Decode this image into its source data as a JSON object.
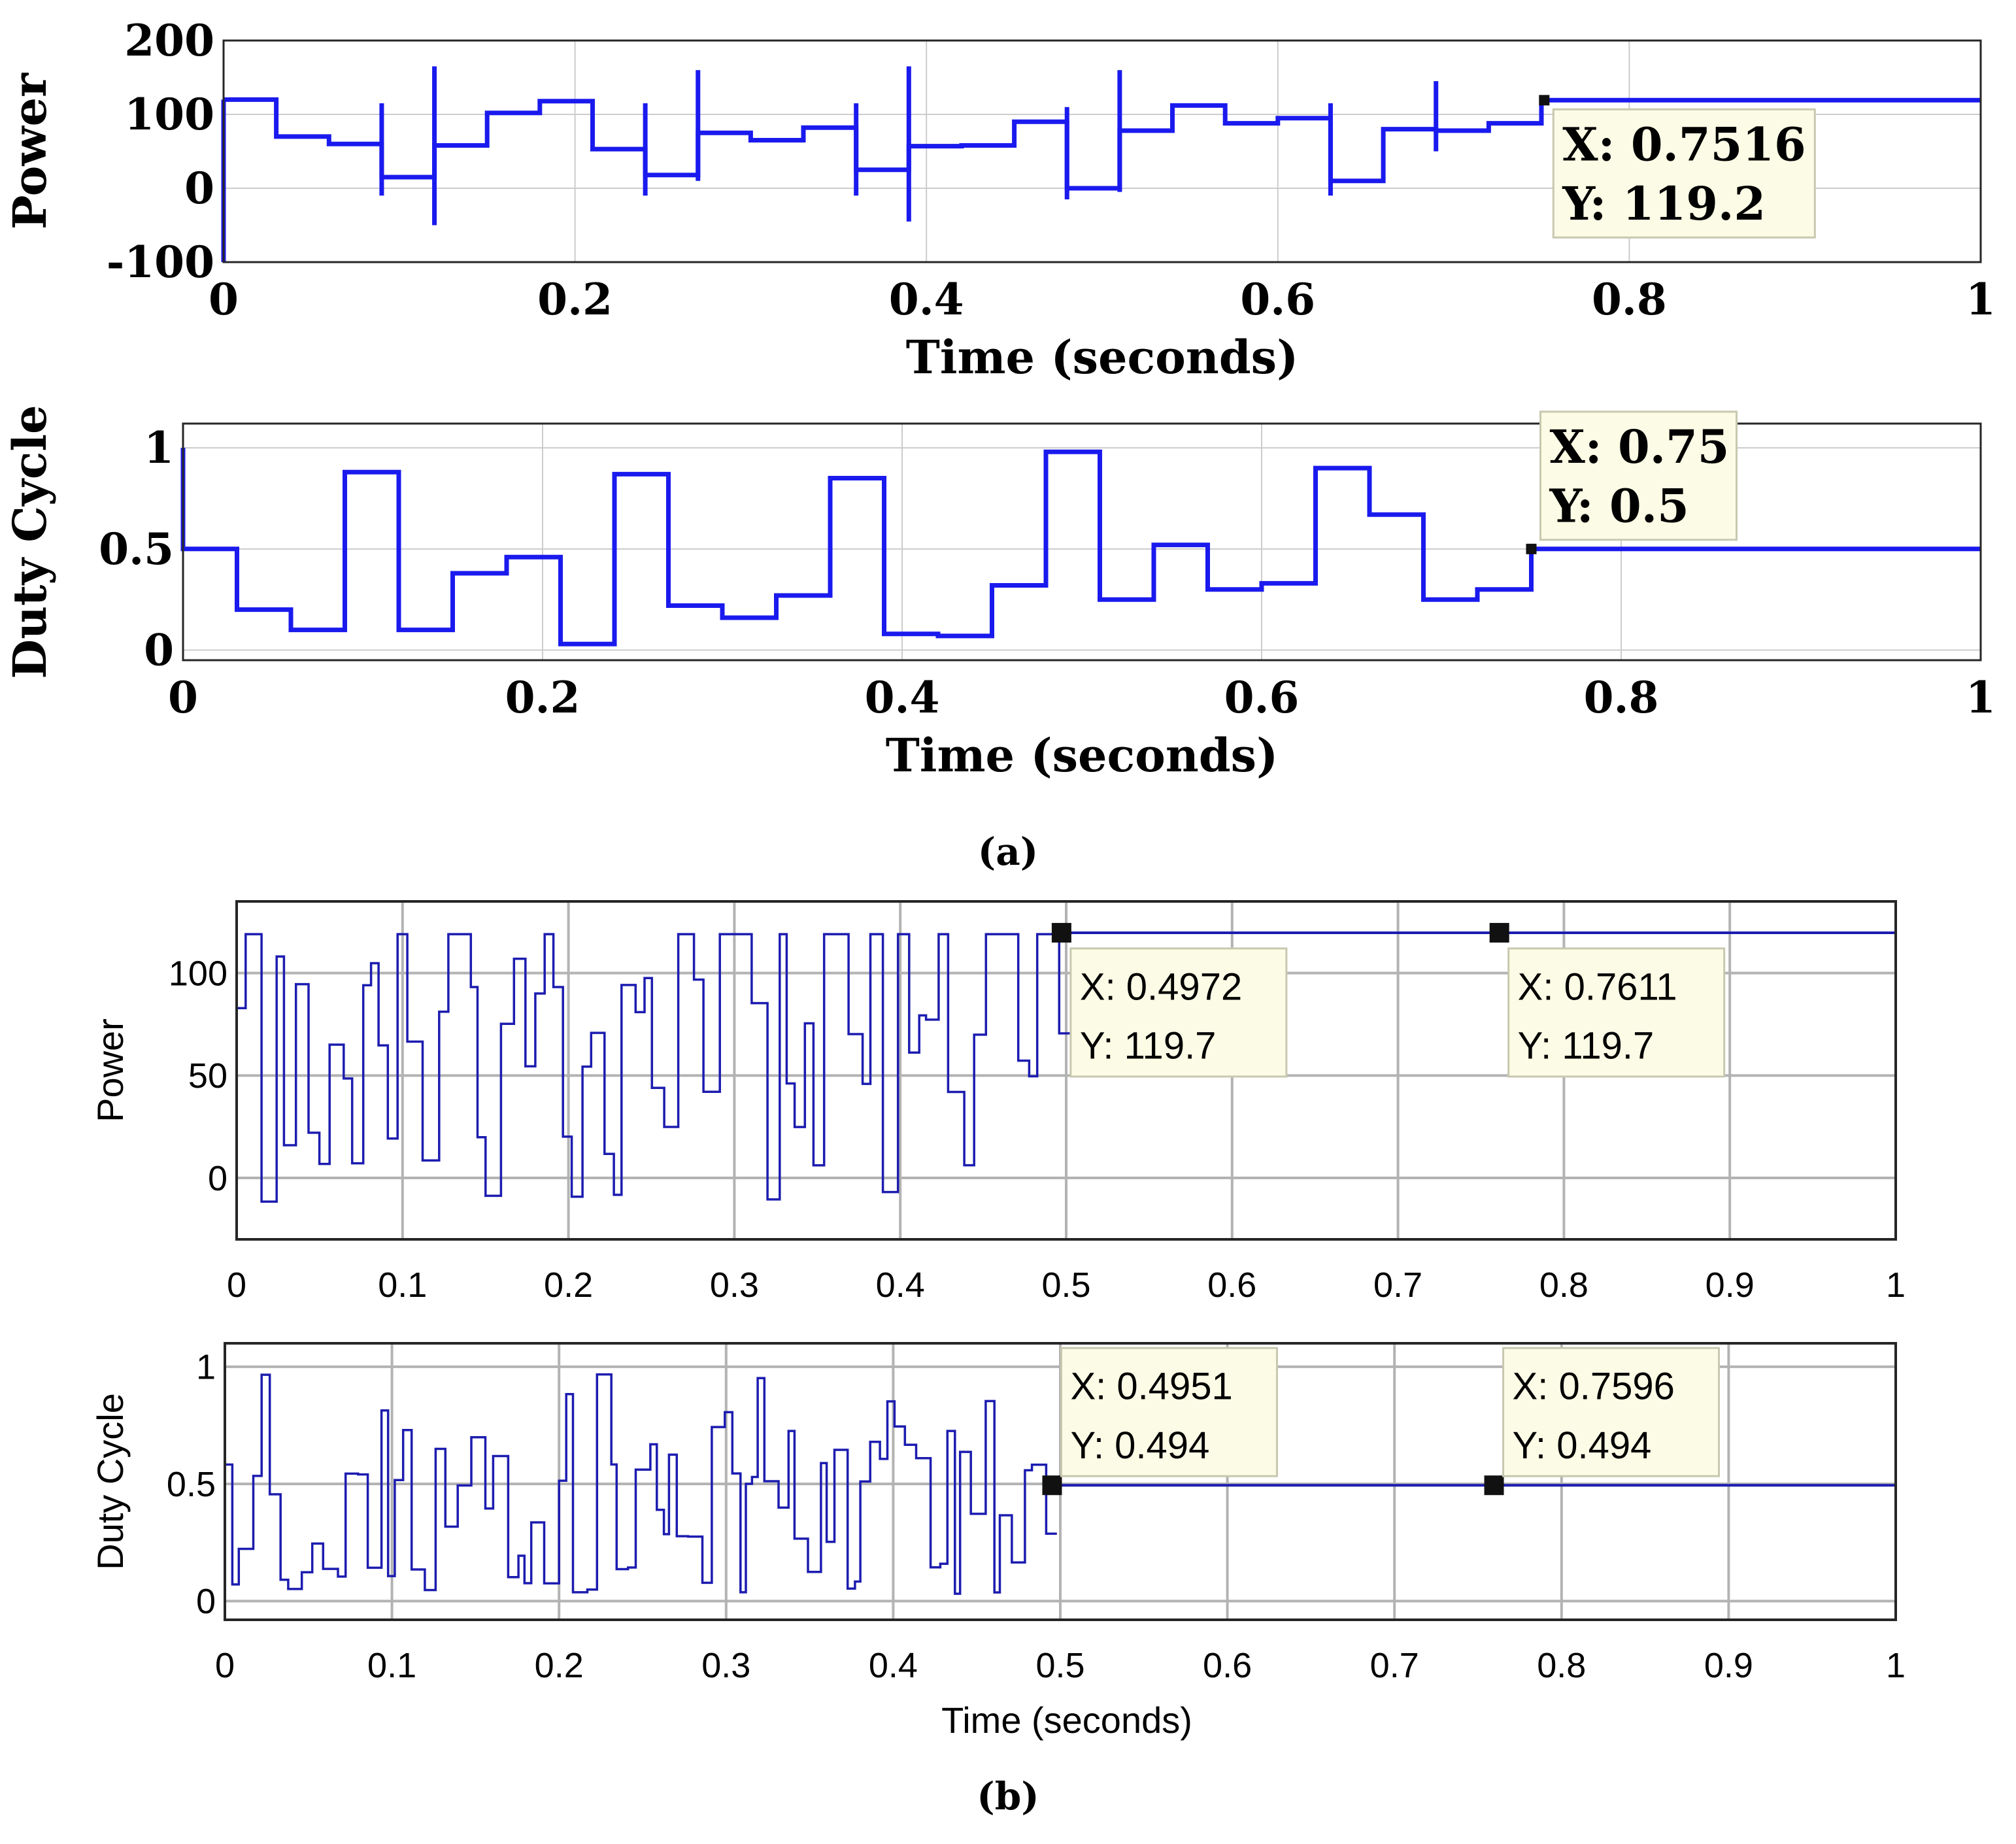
{
  "colors": {
    "trace": "#1a1aee",
    "trace_b": "#1c1cb0",
    "grid": "#cccccc",
    "tip_bg": "#fcfce6",
    "tip_border": "#c8c8b0"
  },
  "panel_a": {
    "label": "(a)"
  },
  "panel_b": {
    "label": "(b)"
  },
  "chart_data": [
    {
      "id": "a_power",
      "type": "line",
      "style": "a",
      "ylabel": "Power",
      "xlabel": "Time (seconds)",
      "xlim": [
        0,
        1
      ],
      "ylim": [
        -100,
        200
      ],
      "xticks": [
        0,
        0.2,
        0.4,
        0.6,
        0.8,
        1
      ],
      "xtick_labels": [
        "0",
        "0.2",
        "0.4",
        "0.6",
        "0.8",
        "1"
      ],
      "yticks": [
        -100,
        0,
        100,
        200
      ],
      "ytick_labels": [
        "-100",
        "0",
        "100",
        "200"
      ],
      "x": [
        0,
        0.03,
        0.03,
        0.06,
        0.06,
        0.09,
        0.09,
        0.12,
        0.12,
        0.15,
        0.15,
        0.18,
        0.18,
        0.21,
        0.21,
        0.24,
        0.24,
        0.27,
        0.27,
        0.3,
        0.3,
        0.33,
        0.33,
        0.36,
        0.36,
        0.39,
        0.39,
        0.42,
        0.42,
        0.45,
        0.45,
        0.48,
        0.48,
        0.51,
        0.51,
        0.54,
        0.54,
        0.57,
        0.57,
        0.6,
        0.6,
        0.63,
        0.63,
        0.66,
        0.66,
        0.69,
        0.69,
        0.72,
        0.72,
        0.75,
        0.75,
        1
      ],
      "y": [
        120,
        120,
        70,
        70,
        60,
        60,
        15,
        15,
        58,
        58,
        102,
        102,
        118,
        118,
        53,
        53,
        18,
        18,
        75,
        75,
        65,
        65,
        82,
        82,
        25,
        25,
        57,
        57,
        58,
        58,
        90,
        90,
        0,
        0,
        78,
        78,
        112,
        112,
        88,
        88,
        95,
        95,
        10,
        10,
        80,
        80,
        78,
        78,
        88,
        88,
        119.2,
        119.2
      ],
      "spikes": [
        {
          "x": 0,
          "lo": -100,
          "hi": 120
        },
        {
          "x": 0.09,
          "lo": -10,
          "hi": 115
        },
        {
          "x": 0.12,
          "lo": -50,
          "hi": 165
        },
        {
          "x": 0.24,
          "lo": -10,
          "hi": 115
        },
        {
          "x": 0.27,
          "lo": 10,
          "hi": 160
        },
        {
          "x": 0.36,
          "lo": -10,
          "hi": 115
        },
        {
          "x": 0.39,
          "lo": -45,
          "hi": 165
        },
        {
          "x": 0.48,
          "lo": -15,
          "hi": 110
        },
        {
          "x": 0.51,
          "lo": -5,
          "hi": 160
        },
        {
          "x": 0.63,
          "lo": -10,
          "hi": 115
        },
        {
          "x": 0.69,
          "lo": 50,
          "hi": 145
        }
      ],
      "markers": [
        {
          "x": 0.7516,
          "y": 119.2,
          "label_x": "X: 0.7516",
          "label_y": "Y: 119.2"
        }
      ]
    },
    {
      "id": "a_duty",
      "type": "line",
      "style": "a",
      "ylabel": "Duty Cycle",
      "xlabel": "Time (seconds)",
      "xlim": [
        0,
        1
      ],
      "ylim": [
        -0.05,
        1.12
      ],
      "xticks": [
        0,
        0.2,
        0.4,
        0.6,
        0.8,
        1
      ],
      "xtick_labels": [
        "0",
        "0.2",
        "0.4",
        "0.6",
        "0.8",
        "1"
      ],
      "yticks": [
        0,
        0.5,
        1
      ],
      "ytick_labels": [
        "0",
        "0.5",
        "1"
      ],
      "x": [
        0,
        0,
        0.03,
        0.03,
        0.06,
        0.06,
        0.09,
        0.09,
        0.12,
        0.12,
        0.15,
        0.15,
        0.18,
        0.18,
        0.21,
        0.21,
        0.24,
        0.24,
        0.27,
        0.27,
        0.3,
        0.3,
        0.33,
        0.33,
        0.36,
        0.36,
        0.39,
        0.39,
        0.42,
        0.42,
        0.45,
        0.45,
        0.48,
        0.48,
        0.51,
        0.51,
        0.54,
        0.54,
        0.57,
        0.57,
        0.6,
        0.6,
        0.63,
        0.63,
        0.66,
        0.66,
        0.69,
        0.69,
        0.72,
        0.72,
        0.75,
        0.75,
        1
      ],
      "y": [
        1,
        0.5,
        0.5,
        0.2,
        0.2,
        0.1,
        0.1,
        0.88,
        0.88,
        0.1,
        0.1,
        0.38,
        0.38,
        0.46,
        0.46,
        0.03,
        0.03,
        0.87,
        0.87,
        0.22,
        0.22,
        0.16,
        0.16,
        0.27,
        0.27,
        0.85,
        0.85,
        0.08,
        0.08,
        0.07,
        0.07,
        0.32,
        0.32,
        0.98,
        0.98,
        0.25,
        0.25,
        0.52,
        0.52,
        0.3,
        0.3,
        0.33,
        0.33,
        0.9,
        0.9,
        0.67,
        0.67,
        0.25,
        0.25,
        0.3,
        0.3,
        0.5,
        0.5
      ],
      "markers": [
        {
          "x": 0.75,
          "y": 0.5,
          "label_x": "X: 0.75",
          "label_y": "Y: 0.5"
        }
      ]
    },
    {
      "id": "b_power",
      "type": "line",
      "style": "b",
      "ylabel": "Power",
      "xlabel": "",
      "xlim": [
        0,
        1
      ],
      "ylim": [
        -30,
        135
      ],
      "xticks": [
        0,
        0.1,
        0.2,
        0.3,
        0.4,
        0.5,
        0.6,
        0.7,
        0.8,
        0.9,
        1
      ],
      "xtick_labels": [
        "0",
        "0.1",
        "0.2",
        "0.3",
        "0.4",
        "0.5",
        "0.6",
        "0.7",
        "0.8",
        "0.9",
        "1"
      ],
      "yticks": [
        0,
        50,
        100
      ],
      "ytick_labels": [
        "0",
        "50",
        "100"
      ],
      "end_x": 0.4972,
      "after_y": 119.7,
      "markers": [
        {
          "x": 0.4972,
          "y": 119.7,
          "label_x": "X: 0.4972",
          "label_y": "Y: 119.7"
        },
        {
          "x": 0.7611,
          "y": 119.7,
          "label_x": "X: 0.7611",
          "label_y": "Y: 119.7"
        }
      ]
    },
    {
      "id": "b_duty",
      "type": "line",
      "style": "b",
      "ylabel": "Duty Cycle",
      "xlabel": "Time (seconds)",
      "xlim": [
        0,
        1
      ],
      "ylim": [
        -0.08,
        1.1
      ],
      "xticks": [
        0,
        0.1,
        0.2,
        0.3,
        0.4,
        0.5,
        0.6,
        0.7,
        0.8,
        0.9,
        1
      ],
      "xtick_labels": [
        "0",
        "0.1",
        "0.2",
        "0.3",
        "0.4",
        "0.5",
        "0.6",
        "0.7",
        "0.8",
        "0.9",
        "1"
      ],
      "yticks": [
        0,
        0.5,
        1
      ],
      "ytick_labels": [
        "0",
        "0.5",
        "1"
      ],
      "end_x": 0.4951,
      "after_y": 0.494,
      "markers": [
        {
          "x": 0.4951,
          "y": 0.494,
          "label_x": "X: 0.4951",
          "label_y": "Y: 0.494"
        },
        {
          "x": 0.7596,
          "y": 0.494,
          "label_x": "X: 0.7596",
          "label_y": "Y: 0.494"
        }
      ]
    }
  ]
}
